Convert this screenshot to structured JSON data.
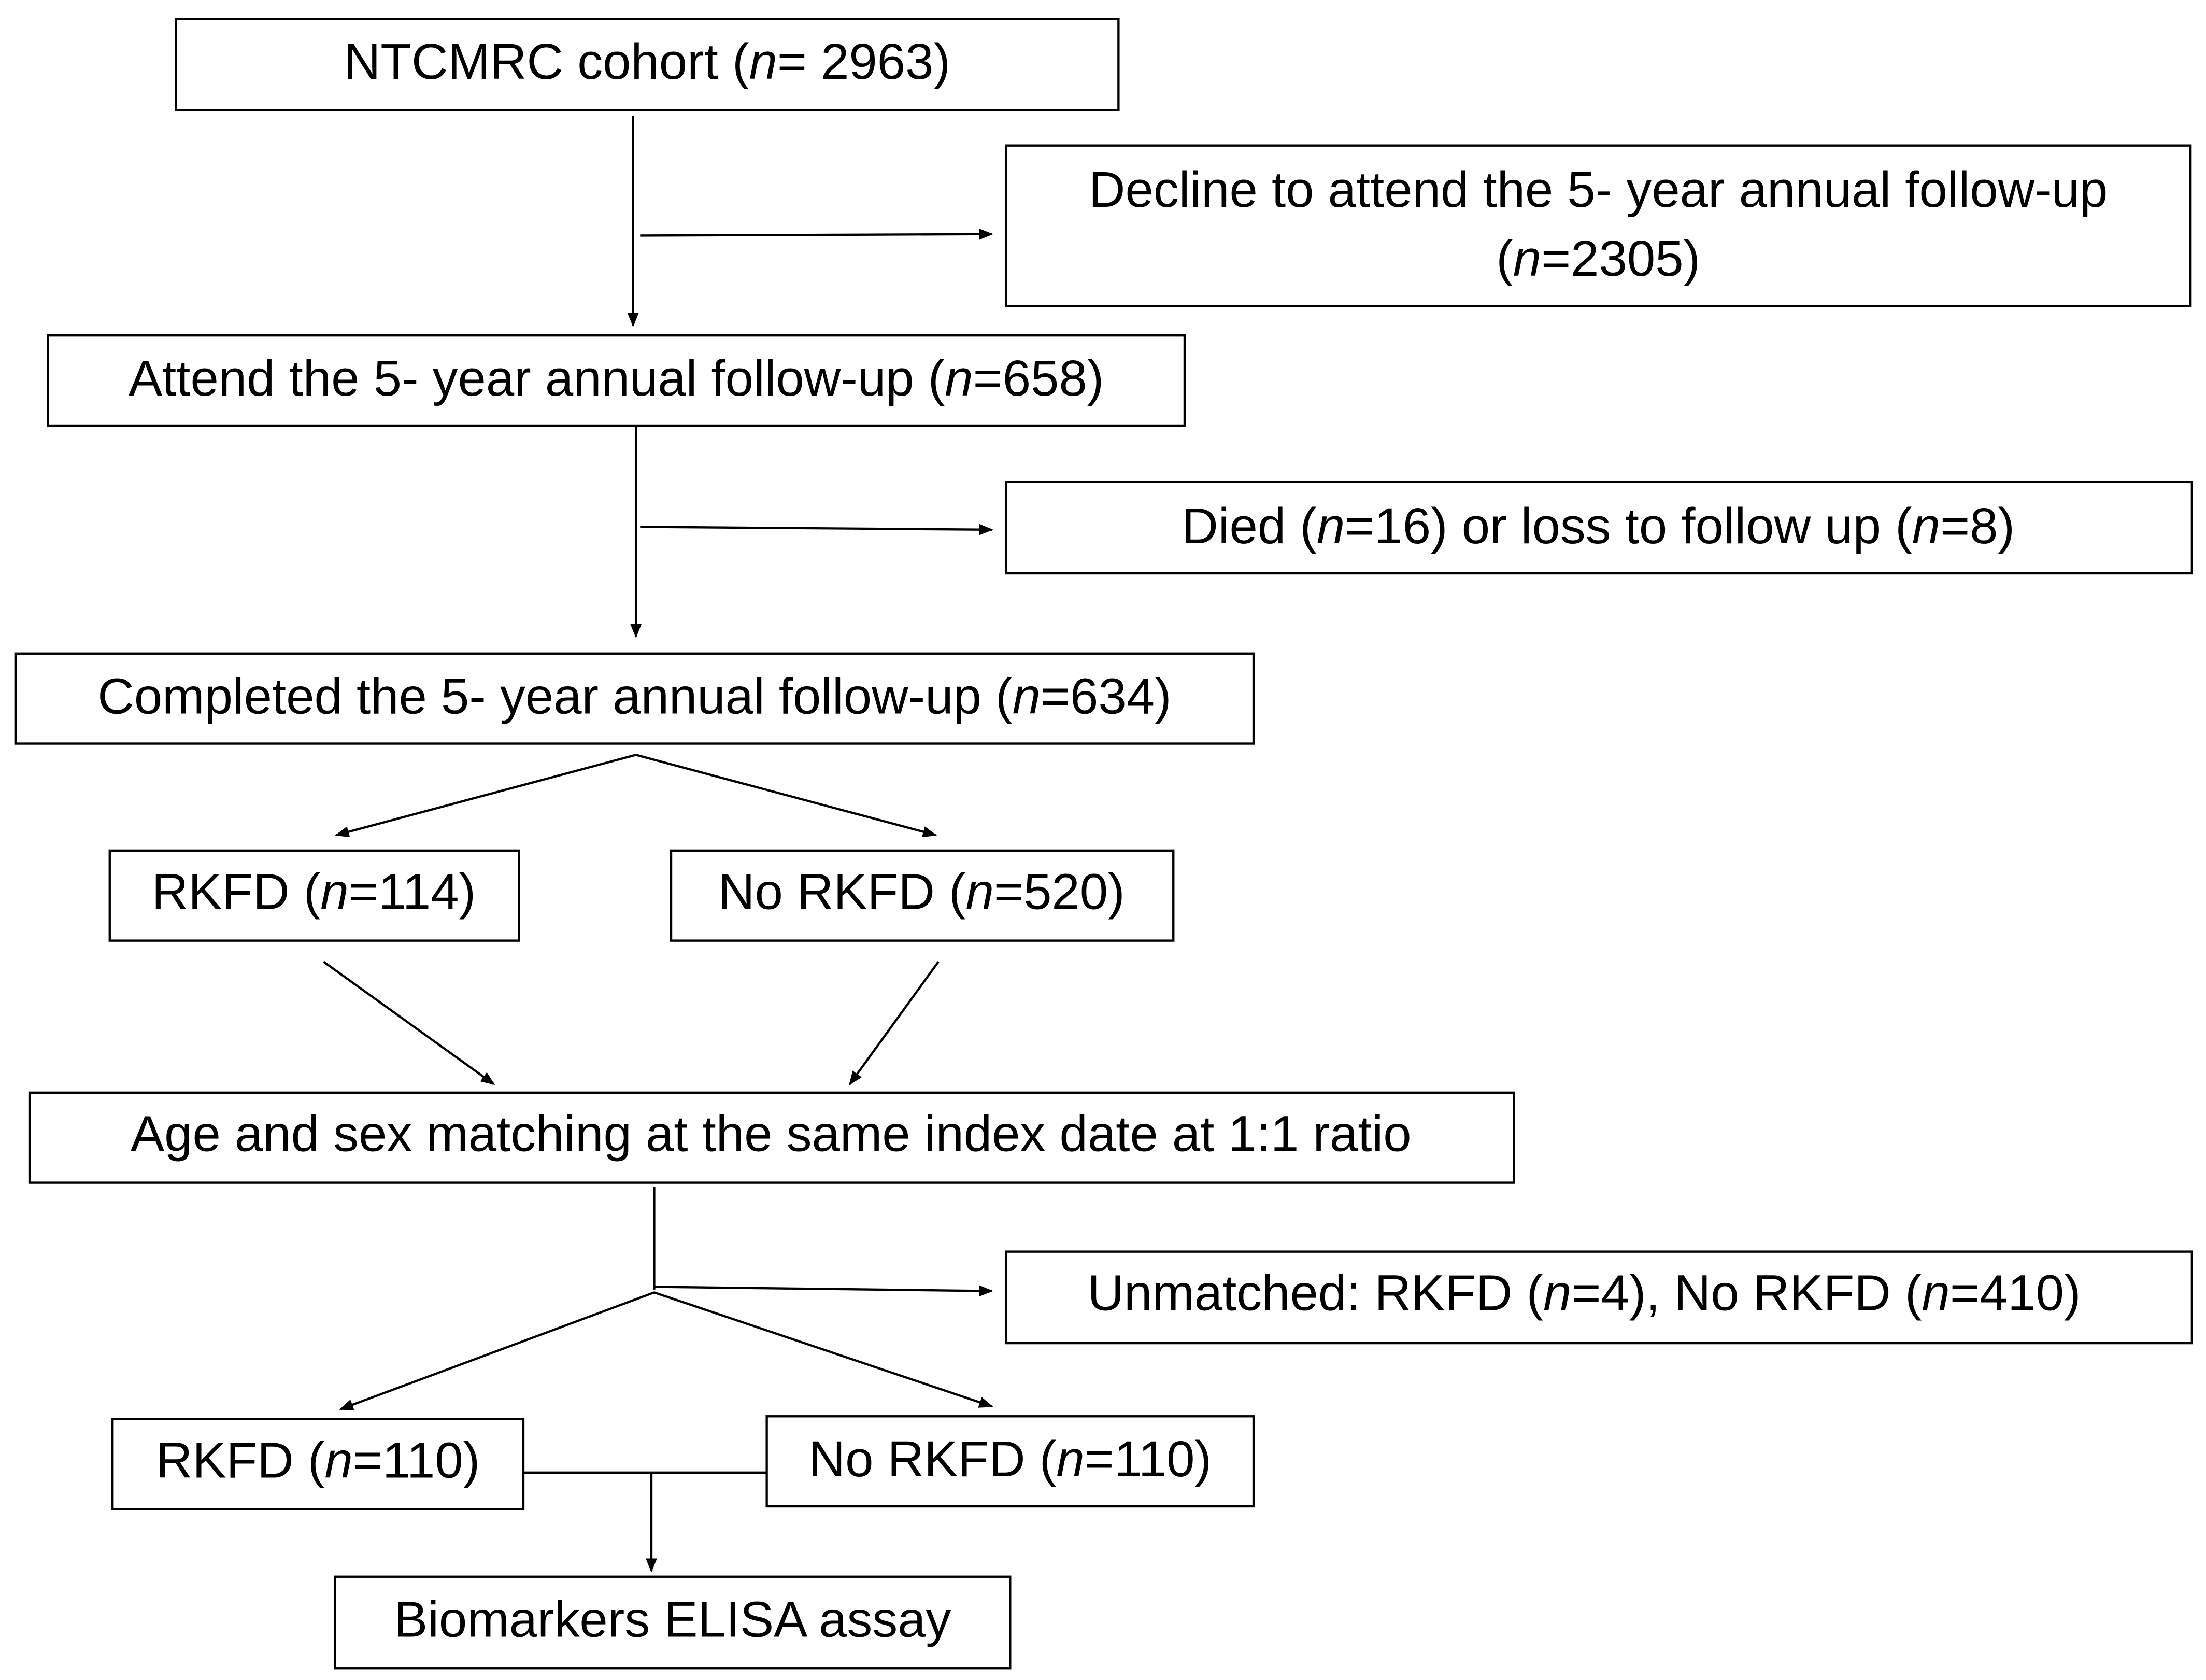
{
  "nodes": [
    {
      "lines": [
        [
          "NTCMRC cohort (",
          "n",
          "= 2963)"
        ]
      ]
    },
    {
      "lines": [
        [
          "Decline to attend the 5- year annual follow-up"
        ],
        [
          "(",
          "n",
          "=2305)"
        ]
      ]
    },
    {
      "lines": [
        [
          "Attend the 5- year annual follow-up (",
          "n",
          "=658)"
        ]
      ]
    },
    {
      "lines": [
        [
          "Died (",
          "n",
          "=16) or loss to follow up (",
          "n",
          "=8)"
        ]
      ]
    },
    {
      "lines": [
        [
          "Completed the 5- year annual follow-up (",
          "n",
          "=634)"
        ]
      ]
    },
    {
      "lines": [
        [
          "RKFD (",
          "n",
          "=114)"
        ]
      ]
    },
    {
      "lines": [
        [
          "No RKFD (",
          "n",
          "=520)"
        ]
      ]
    },
    {
      "lines": [
        [
          "Age and sex matching at the same index date at 1:1 ratio"
        ]
      ]
    },
    {
      "lines": [
        [
          "Unmatched: RKFD (",
          "n",
          "=4), No RKFD (",
          "n",
          "=410)"
        ]
      ]
    },
    {
      "lines": [
        [
          "RKFD (",
          "n",
          "=110)"
        ]
      ]
    },
    {
      "lines": [
        [
          "No RKFD (",
          "n",
          "=110)"
        ]
      ]
    },
    {
      "lines": [
        [
          "Biomarkers ELISA assay"
        ]
      ]
    }
  ]
}
